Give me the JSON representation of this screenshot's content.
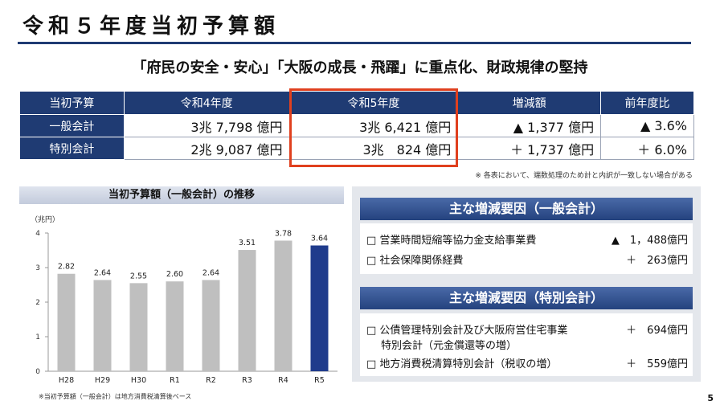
{
  "page": {
    "title": "令和５年度当初予算額",
    "subtitle": "「府民の安全・安心」「大阪の成長・飛躍」に重点化、財政規律の堅持",
    "page_number": "5"
  },
  "table": {
    "headers": [
      "当初予算",
      "令和4年度",
      "令和5年度",
      "増減額",
      "前年度比"
    ],
    "rows": [
      {
        "label": "一般会計",
        "r4": "3兆 7,798 億円",
        "r5": "3兆 6,421 億円",
        "diff": "▲ 1,377 億円",
        "ratio": "▲ 3.6%"
      },
      {
        "label": "特別会計",
        "r4": "2兆 9,087 億円",
        "r5": "3兆　824 億円",
        "diff": "＋ 1,737 億円",
        "ratio": "＋ 6.0%"
      }
    ],
    "note": "※ 各表において、端数処理のため計と内訳が一致しない場合がある"
  },
  "chart_data": {
    "type": "bar",
    "title": "当初予算額（一般会計）の推移",
    "ylabel": "（兆円）",
    "categories": [
      "H28",
      "H29",
      "H30",
      "R1",
      "R2",
      "R3",
      "R4",
      "R5"
    ],
    "values": [
      2.82,
      2.64,
      2.55,
      2.6,
      2.64,
      3.51,
      3.78,
      3.64
    ],
    "value_labels": [
      "2.82",
      "2.64",
      "2.55",
      "2.60",
      "2.64",
      "3.51",
      "3.78",
      "3.64"
    ],
    "ylim": [
      0,
      4
    ],
    "yticks": [
      "0",
      "1",
      "2",
      "3",
      "4"
    ],
    "grid": false,
    "colors": {
      "default": "#bfbfbf",
      "highlight": "#1f3b8c"
    },
    "note": "※当初予算額（一般会計）は地方消費税清算後ベース"
  },
  "factors": {
    "general": {
      "title": "主な増減要因（一般会計）",
      "items": [
        {
          "label": "□ 営業時間短縮等協力金支給事業費",
          "value": "▲　1，488億円"
        },
        {
          "label": "□ 社会保障関係経費",
          "value": "＋　263億円"
        }
      ]
    },
    "special": {
      "title": "主な増減要因（特別会計）",
      "items": [
        {
          "label": "□ 公債管理特別会計及び大阪府営住宅事業",
          "label2": "特別会計（元金償還等の増）",
          "value": "＋　694億円"
        },
        {
          "label": "□ 地方消費税清算特別会計（税収の増）",
          "value": "＋　559億円"
        }
      ]
    }
  }
}
